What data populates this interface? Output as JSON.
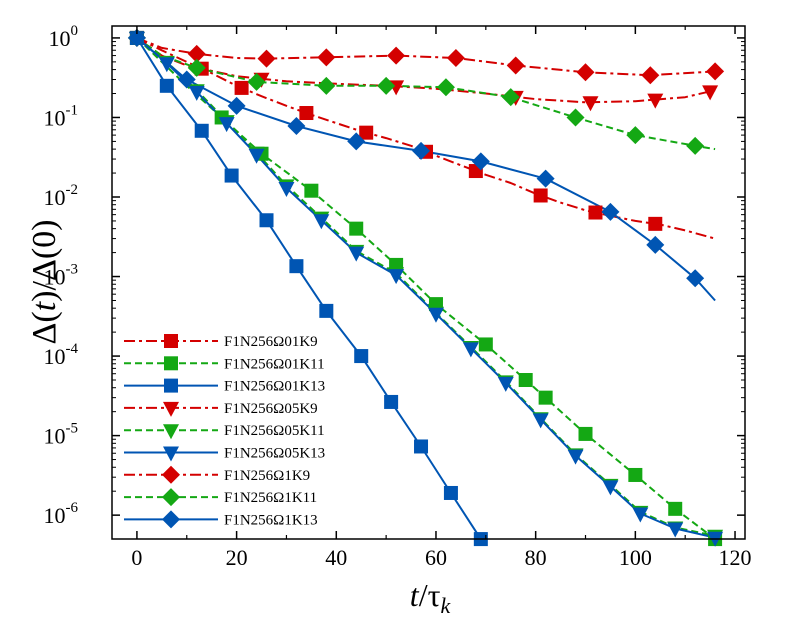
{
  "chart_data": {
    "type": "line",
    "title": "",
    "xlabel_parts": {
      "var": "t",
      "sep": "/",
      "tau": "τ",
      "sub": "k"
    },
    "ylabel_parts": {
      "pre": "Δ(",
      "var": "t",
      "post": ")/Δ(0)"
    },
    "xlim": [
      -5,
      122
    ],
    "ylim_log10": [
      -6.3,
      0.15
    ],
    "y_scale": "log",
    "x_ticks": [
      0,
      20,
      40,
      60,
      80,
      100,
      120
    ],
    "x_tick_labels": [
      "0",
      "20",
      "40",
      "60",
      "80",
      "100",
      "120"
    ],
    "y_ticks": [
      {
        "exp": 0,
        "base": "10",
        "sup": "0"
      },
      {
        "exp": -1,
        "base": "10",
        "sup": "-1"
      },
      {
        "exp": -2,
        "base": "10",
        "sup": "-2"
      },
      {
        "exp": -3,
        "base": "10",
        "sup": "-3"
      },
      {
        "exp": -4,
        "base": "10",
        "sup": "-4"
      },
      {
        "exp": -5,
        "base": "10",
        "sup": "-5"
      },
      {
        "exp": -6,
        "base": "10",
        "sup": "-6"
      }
    ],
    "legend_position": "bottom-left",
    "colors": {
      "red": "#d40000",
      "green": "#14a814",
      "blue": "#0055b3"
    },
    "series": [
      {
        "name": "F1N256Ω01K9",
        "color": "#d40000",
        "dash": "dashdot",
        "marker": "square",
        "x": [
          0,
          5,
          10,
          15,
          20,
          25,
          30,
          35,
          40,
          45,
          50,
          55,
          60,
          65,
          70,
          75,
          80,
          85,
          90,
          95,
          100,
          105,
          110,
          116
        ],
        "y": [
          1.0,
          0.7,
          0.5,
          0.36,
          0.25,
          0.185,
          0.14,
          0.108,
          0.085,
          0.067,
          0.055,
          0.044,
          0.033,
          0.025,
          0.019,
          0.015,
          0.011,
          0.0085,
          0.0068,
          0.0058,
          0.005,
          0.0045,
          0.0038,
          0.003
        ],
        "marker_x": [
          0,
          13,
          21,
          34,
          46,
          58,
          68,
          81,
          92,
          104
        ]
      },
      {
        "name": "F1N256Ω01K11",
        "color": "#14a814",
        "dash": "dashed",
        "marker": "square",
        "x": [
          0,
          5,
          10,
          17,
          25,
          35,
          44,
          52,
          60,
          70,
          78,
          82,
          90,
          100,
          108,
          116
        ],
        "y": [
          1.0,
          0.5,
          0.25,
          0.1,
          0.035,
          0.012,
          0.004,
          0.0014,
          0.00045,
          0.00014,
          5e-05,
          3e-05,
          1.05e-05,
          3.2e-06,
          1.2e-06,
          5e-07
        ],
        "marker_x": [
          0,
          17,
          25,
          35,
          44,
          52,
          60,
          70,
          78,
          82,
          90,
          100,
          108,
          116
        ]
      },
      {
        "name": "F1N256Ω01K13",
        "color": "#0055b3",
        "dash": "solid",
        "marker": "square",
        "x": [
          0,
          6,
          13,
          19,
          26,
          32,
          38,
          45,
          51,
          57,
          63,
          69
        ],
        "y": [
          1.0,
          0.25,
          0.068,
          0.0186,
          0.0051,
          0.00135,
          0.00037,
          0.0001,
          2.65e-05,
          7.3e-06,
          1.9e-06,
          5e-07
        ],
        "marker_x": [
          0,
          6,
          13,
          19,
          26,
          32,
          38,
          45,
          51,
          57,
          63,
          69
        ]
      },
      {
        "name": "F1N256Ω05K9",
        "color": "#d40000",
        "dash": "dashdot",
        "marker": "triangle",
        "x": [
          0,
          5,
          10,
          20,
          30,
          40,
          50,
          60,
          70,
          80,
          90,
          100,
          110,
          116
        ],
        "y": [
          1.0,
          0.6,
          0.45,
          0.33,
          0.285,
          0.265,
          0.25,
          0.23,
          0.2,
          0.17,
          0.155,
          0.16,
          0.18,
          0.22
        ],
        "marker_x": [
          0,
          25,
          52,
          76,
          91,
          104,
          115
        ]
      },
      {
        "name": "F1N256Ω05K11",
        "color": "#14a814",
        "dash": "dashed",
        "marker": "triangle",
        "x": [
          0,
          6,
          12,
          18,
          24,
          30,
          37,
          44,
          52,
          60,
          67,
          74,
          81,
          88,
          95,
          101,
          108,
          116
        ],
        "y": [
          1.0,
          0.5,
          0.22,
          0.09,
          0.036,
          0.014,
          0.0055,
          0.0021,
          0.0011,
          0.00035,
          0.00013,
          4.8e-05,
          1.65e-05,
          5.8e-06,
          2.4e-06,
          1.1e-06,
          7e-07,
          5.5e-07
        ],
        "marker_x": [
          0,
          6,
          12,
          18,
          24,
          30,
          37,
          44,
          52,
          60,
          67,
          74,
          81,
          88,
          95,
          101,
          108,
          116
        ]
      },
      {
        "name": "F1N256Ω05K13",
        "color": "#0055b3",
        "dash": "solid",
        "marker": "triangle",
        "x": [
          0,
          6,
          12,
          18,
          24,
          30,
          37,
          44,
          52,
          60,
          67,
          74,
          81,
          88,
          95,
          101,
          108,
          116
        ],
        "y": [
          1.0,
          0.48,
          0.21,
          0.085,
          0.034,
          0.013,
          0.0051,
          0.002,
          0.00104,
          0.00034,
          0.000125,
          4.6e-05,
          1.6e-05,
          5.6e-06,
          2.3e-06,
          1.05e-06,
          6.8e-07,
          5.2e-07
        ],
        "marker_x": [
          0,
          6,
          12,
          18,
          24,
          30,
          37,
          44,
          52,
          60,
          67,
          74,
          81,
          88,
          95,
          101,
          108,
          116
        ]
      },
      {
        "name": "F1N256Ω1K9",
        "color": "#d40000",
        "dash": "dashdot",
        "marker": "diamond",
        "x": [
          0,
          5,
          12,
          20,
          26,
          38,
          52,
          64,
          76,
          90,
          103,
          116
        ],
        "y": [
          1.0,
          0.75,
          0.63,
          0.56,
          0.55,
          0.57,
          0.6,
          0.56,
          0.45,
          0.37,
          0.34,
          0.38
        ],
        "marker_x": [
          0,
          12,
          26,
          38,
          52,
          64,
          76,
          90,
          103,
          116
        ]
      },
      {
        "name": "F1N256Ω1K11",
        "color": "#14a814",
        "dash": "dashed",
        "marker": "diamond",
        "x": [
          0,
          5,
          12,
          24,
          38,
          50,
          62,
          75,
          88,
          100,
          112,
          116
        ],
        "y": [
          1.0,
          0.6,
          0.42,
          0.28,
          0.25,
          0.25,
          0.24,
          0.18,
          0.1,
          0.06,
          0.044,
          0.04
        ],
        "marker_x": [
          0,
          12,
          24,
          38,
          50,
          62,
          75,
          88,
          100,
          112
        ]
      },
      {
        "name": "F1N256Ω1K13",
        "color": "#0055b3",
        "dash": "solid",
        "marker": "diamond",
        "x": [
          0,
          5,
          10,
          20,
          32,
          44,
          57,
          69,
          82,
          95,
          104,
          112,
          116
        ],
        "y": [
          1.0,
          0.55,
          0.3,
          0.14,
          0.078,
          0.05,
          0.038,
          0.028,
          0.017,
          0.0065,
          0.0025,
          0.00095,
          0.0005
        ],
        "marker_x": [
          0,
          10,
          20,
          32,
          44,
          57,
          69,
          82,
          95,
          104,
          112
        ]
      }
    ]
  }
}
